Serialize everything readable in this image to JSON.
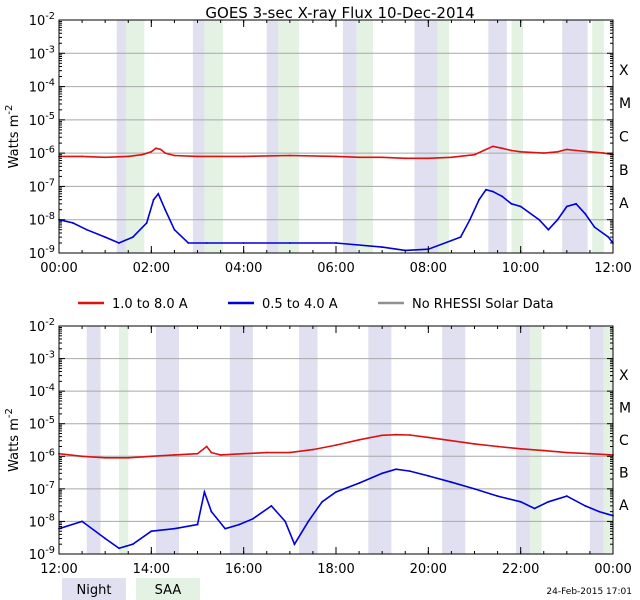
{
  "title": "GOES 3-sec X-ray Flux   10-Dec-2014",
  "footer_timestamp": "24-Feb-2015 17:01",
  "colors": {
    "long": "#dd1111",
    "short": "#0000dd",
    "no_rhessi": "#909090",
    "night": "#e0e0f0",
    "saa": "#e3f2e3"
  },
  "legend": [
    {
      "label": "1.0 to 8.0 A",
      "color": "#dd1111"
    },
    {
      "label": "0.5 to 4.0 A",
      "color": "#0000dd"
    },
    {
      "label": "No RHESSI Solar Data",
      "color": "#909090"
    }
  ],
  "band_legend": {
    "night": "Night",
    "saa": "SAA"
  },
  "chart_data": [
    {
      "type": "line",
      "panel": "top",
      "ylabel": "Watts m-2",
      "y_scale": "log",
      "ylim": [
        1e-09,
        0.01
      ],
      "xlim_hours": [
        0,
        12
      ],
      "x_tick_labels": [
        "00:00",
        "02:00",
        "04:00",
        "06:00",
        "08:00",
        "10:00",
        "12:00"
      ],
      "y_tick_labels": [
        "10-9",
        "10-8",
        "10-7",
        "10-6",
        "10-5",
        "10-4",
        "10-3",
        "10-2"
      ],
      "class_labels": [
        "A",
        "B",
        "C",
        "M",
        "X"
      ],
      "night_hours": [
        [
          1.25,
          1.45
        ],
        [
          2.9,
          3.15
        ],
        [
          4.5,
          4.75
        ],
        [
          6.15,
          6.45
        ],
        [
          7.7,
          8.2
        ],
        [
          9.3,
          9.7
        ],
        [
          10.9,
          11.45
        ]
      ],
      "saa_hours": [
        [
          1.45,
          1.85
        ],
        [
          3.15,
          3.55
        ],
        [
          4.75,
          5.2
        ],
        [
          6.45,
          6.8
        ],
        [
          8.2,
          8.45
        ],
        [
          9.8,
          10.05
        ],
        [
          11.55,
          11.8
        ]
      ],
      "series": [
        {
          "name": "1.0 to 8.0 A",
          "hours": [
            0,
            0.5,
            1,
            1.5,
            1.8,
            2,
            2.1,
            2.2,
            2.3,
            2.5,
            3,
            4,
            5,
            6,
            6.5,
            7,
            7.5,
            8,
            8.5,
            9,
            9.2,
            9.4,
            9.6,
            9.8,
            10,
            10.5,
            10.8,
            11,
            11.2,
            11.5,
            11.8,
            12
          ],
          "flux": [
            8e-07,
            8e-07,
            7.5e-07,
            8e-07,
            9e-07,
            1.1e-06,
            1.4e-06,
            1.3e-06,
            1e-06,
            8.5e-07,
            8e-07,
            8e-07,
            8.5e-07,
            8e-07,
            7.5e-07,
            7.5e-07,
            7e-07,
            7e-07,
            7.5e-07,
            9e-07,
            1.2e-06,
            1.6e-06,
            1.4e-06,
            1.2e-06,
            1.1e-06,
            1e-06,
            1.1e-06,
            1.3e-06,
            1.2e-06,
            1.1e-06,
            1e-06,
            9e-07
          ]
        },
        {
          "name": "0.5 to 4.0 A",
          "hours": [
            0,
            0.3,
            0.6,
            1,
            1.3,
            1.6,
            1.9,
            2.05,
            2.15,
            2.3,
            2.5,
            2.8,
            3.2,
            4,
            5,
            6,
            7,
            7.5,
            8,
            8.7,
            8.9,
            9.1,
            9.25,
            9.4,
            9.6,
            9.8,
            10,
            10.4,
            10.6,
            10.8,
            11,
            11.2,
            11.4,
            11.6,
            11.9,
            12
          ],
          "flux": [
            1e-08,
            8e-09,
            5e-09,
            3e-09,
            2e-09,
            3e-09,
            8e-09,
            4e-08,
            6e-08,
            2e-08,
            5e-09,
            2e-09,
            2e-09,
            2e-09,
            2e-09,
            2e-09,
            1.5e-09,
            1.2e-09,
            1.3e-09,
            3e-09,
            1e-08,
            4e-08,
            8e-08,
            7e-08,
            5e-08,
            3e-08,
            2.5e-08,
            1e-08,
            5e-09,
            1e-08,
            2.5e-08,
            3e-08,
            1.5e-08,
            6e-09,
            3e-09,
            2e-09
          ]
        }
      ]
    },
    {
      "type": "line",
      "panel": "bottom",
      "ylabel": "Watts m-2",
      "y_scale": "log",
      "ylim": [
        1e-09,
        0.01
      ],
      "xlim_hours": [
        12,
        24
      ],
      "x_tick_labels": [
        "12:00",
        "14:00",
        "16:00",
        "18:00",
        "20:00",
        "22:00",
        "00:00"
      ],
      "y_tick_labels": [
        "10-9",
        "10-8",
        "10-7",
        "10-6",
        "10-5",
        "10-4",
        "10-3",
        "10-2"
      ],
      "class_labels": [
        "A",
        "B",
        "C",
        "M",
        "X"
      ],
      "night_hours": [
        [
          12.6,
          12.9
        ],
        [
          14.1,
          14.6
        ],
        [
          15.7,
          16.2
        ],
        [
          17.2,
          17.6
        ],
        [
          18.7,
          19.2
        ],
        [
          20.3,
          20.8
        ],
        [
          21.9,
          22.2
        ],
        [
          23.5,
          23.8
        ]
      ],
      "saa_hours": [
        [
          13.3,
          13.5
        ],
        [
          22.2,
          22.45
        ],
        [
          23.8,
          24
        ]
      ],
      "series": [
        {
          "name": "1.0 to 8.0 A",
          "hours": [
            12,
            12.5,
            13,
            13.5,
            14,
            14.5,
            15,
            15.2,
            15.3,
            15.5,
            16,
            16.5,
            17,
            17.5,
            18,
            18.5,
            19,
            19.3,
            19.6,
            20,
            20.5,
            21,
            21.5,
            22,
            22.5,
            23,
            23.5,
            24
          ],
          "flux": [
            1.2e-06,
            1e-06,
            9e-07,
            9e-07,
            1e-06,
            1.1e-06,
            1.2e-06,
            2e-06,
            1.3e-06,
            1.1e-06,
            1.2e-06,
            1.3e-06,
            1.3e-06,
            1.6e-06,
            2.2e-06,
            3.2e-06,
            4.4e-06,
            4.6e-06,
            4.5e-06,
            3.8e-06,
            3e-06,
            2.4e-06,
            2e-06,
            1.7e-06,
            1.5e-06,
            1.3e-06,
            1.2e-06,
            1.1e-06
          ]
        },
        {
          "name": "0.5 to 4.0 A",
          "hours": [
            12,
            12.5,
            13,
            13.3,
            13.6,
            14,
            14.5,
            15,
            15.15,
            15.3,
            15.6,
            15.9,
            16.2,
            16.6,
            16.9,
            17.1,
            17.4,
            17.7,
            18,
            18.5,
            19,
            19.3,
            19.6,
            20,
            20.5,
            21,
            21.5,
            22,
            22.3,
            22.6,
            23,
            23.4,
            23.7,
            24
          ],
          "flux": [
            6e-09,
            1e-08,
            3e-09,
            1.5e-09,
            2e-09,
            5e-09,
            6e-09,
            8e-09,
            8e-08,
            2e-08,
            6e-09,
            8e-09,
            1.2e-08,
            3e-08,
            1e-08,
            2e-09,
            1e-08,
            4e-08,
            8e-08,
            1.5e-07,
            3e-07,
            4e-07,
            3.5e-07,
            2.5e-07,
            1.6e-07,
            1e-07,
            6e-08,
            4e-08,
            2.5e-08,
            4e-08,
            6e-08,
            3e-08,
            2e-08,
            1.5e-08
          ]
        }
      ]
    }
  ]
}
